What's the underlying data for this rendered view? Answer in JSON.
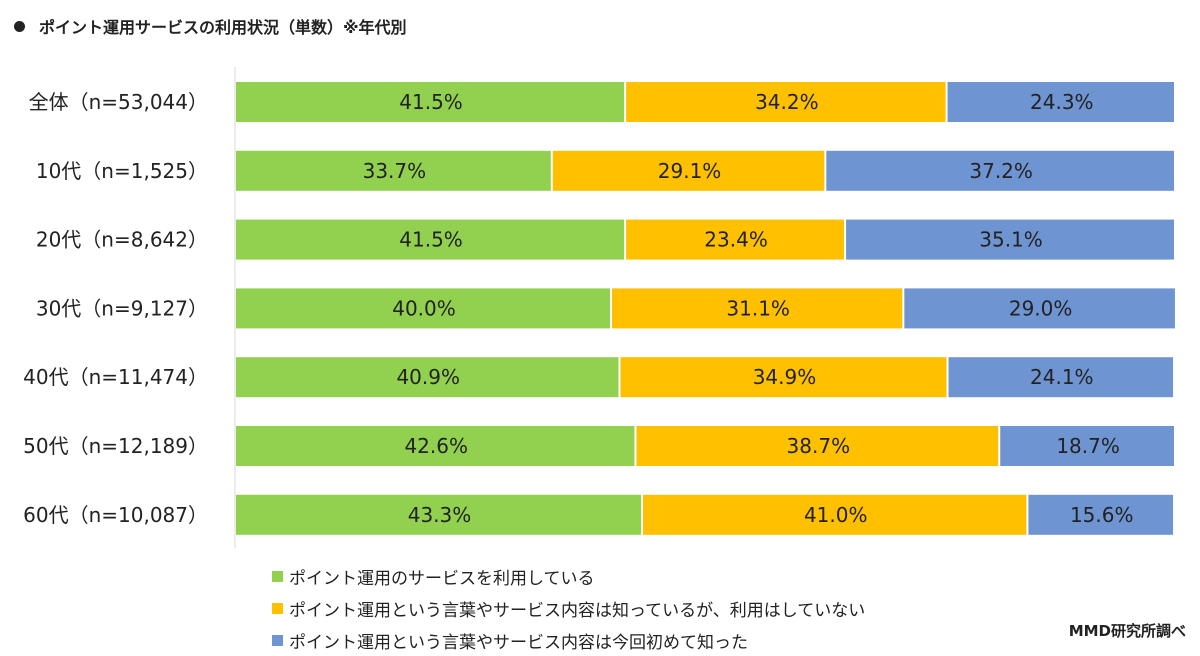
{
  "title": "ポイント運用サービスの利用状況（単数）※年代別",
  "credit": "MMD研究所調べ",
  "chart_data": {
    "type": "bar",
    "orientation": "horizontal",
    "stacked": "100%",
    "categories": [
      "全体（n=53,044）",
      "10代（n=1,525）",
      "20代（n=8,642）",
      "30代（n=9,127）",
      "40代（n=11,474）",
      "50代（n=12,189）",
      "60代（n=10,087）"
    ],
    "series": [
      {
        "name": "ポイント運用のサービスを利用している",
        "color": "#92d050",
        "values": [
          41.5,
          33.7,
          41.5,
          40.0,
          40.9,
          42.6,
          43.3
        ]
      },
      {
        "name": "ポイント運用という言葉やサービス内容は知っているが、利用はしていない",
        "color": "#ffc000",
        "values": [
          34.2,
          29.1,
          23.4,
          31.1,
          34.9,
          38.7,
          41.0
        ]
      },
      {
        "name": "ポイント運用という言葉やサービス内容は今回初めて知った",
        "color": "#6f94d2",
        "values": [
          24.3,
          37.2,
          35.1,
          29.0,
          24.1,
          18.7,
          15.6
        ]
      }
    ],
    "value_format": "percent_1dp",
    "xlim": [
      0,
      100
    ],
    "legend_position": "bottom",
    "grid": false
  }
}
